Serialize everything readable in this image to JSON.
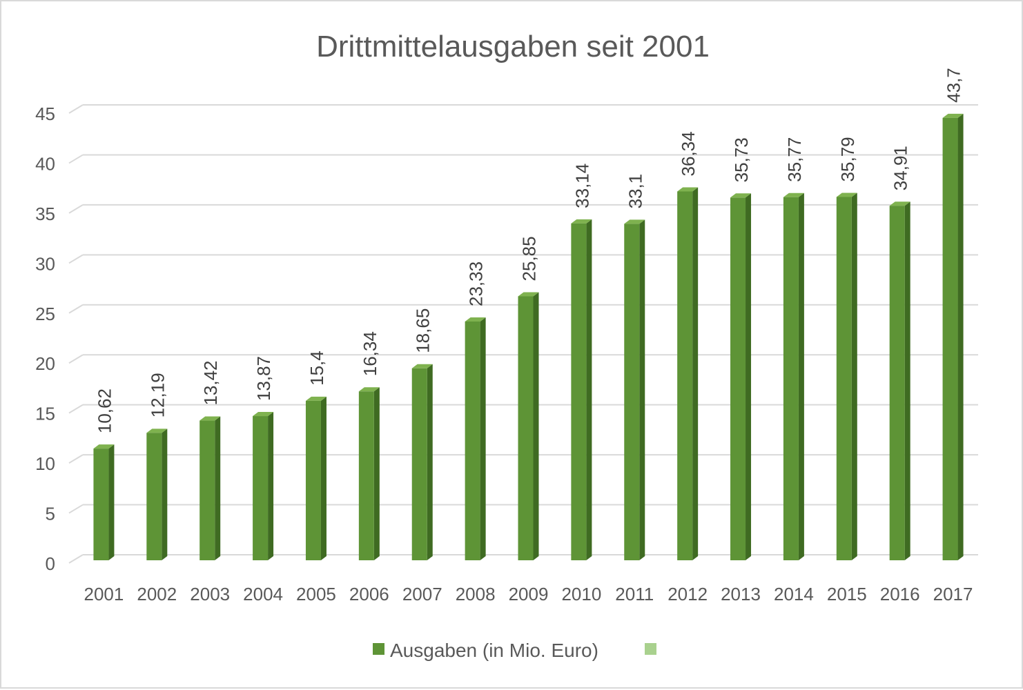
{
  "chart_data": {
    "type": "bar",
    "title": "Drittmittelausgaben seit 2001",
    "categories": [
      "2001",
      "2002",
      "2003",
      "2004",
      "2005",
      "2006",
      "2007",
      "2008",
      "2009",
      "2010",
      "2011",
      "2012",
      "2013",
      "2014",
      "2015",
      "2016",
      "2017"
    ],
    "series": [
      {
        "name": "Ausgaben (in Mio. Euro)",
        "color": "#5e9436",
        "values": [
          10.62,
          12.19,
          13.42,
          13.87,
          15.4,
          16.34,
          18.65,
          23.33,
          25.85,
          33.14,
          33.1,
          36.34,
          35.73,
          35.77,
          35.79,
          34.91,
          43.7
        ],
        "labels": [
          "10,62",
          "12,19",
          "13,42",
          "13,87",
          "15,4",
          "16,34",
          "18,65",
          "23,33",
          "25,85",
          "33,14",
          "33,1",
          "36,34",
          "35,73",
          "35,77",
          "35,79",
          "34,91",
          "43,7"
        ]
      }
    ],
    "legend": [
      {
        "label": "Ausgaben (in Mio. Euro)",
        "color": "#5e9436"
      },
      {
        "label": "",
        "color": "#a9d18e"
      }
    ],
    "ylim": [
      0,
      45
    ],
    "yticks": [
      0,
      5,
      10,
      15,
      20,
      25,
      30,
      35,
      40,
      45
    ],
    "grid": true,
    "legend_position": "bottom"
  }
}
